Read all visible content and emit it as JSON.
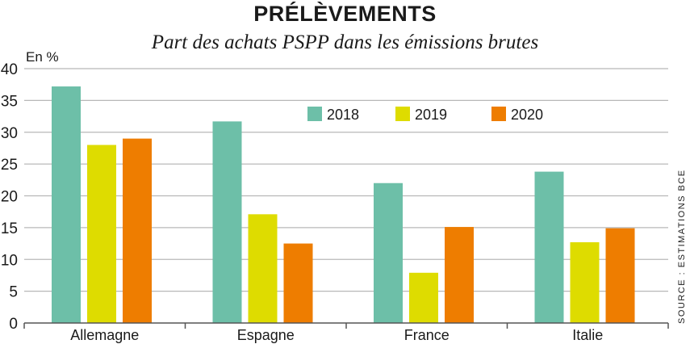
{
  "title": "PRÉLÈVEMENTS",
  "subtitle": "Part des achats PSPP dans les émissions brutes",
  "source": "SOURCE : ESTIMATIONS BCE",
  "colors": {
    "s2018": "#6dbfa8",
    "s2019": "#dedc00",
    "s2020": "#ee7d00",
    "grid": "#b8b8b8",
    "axis": "#555555"
  },
  "chart_data": {
    "type": "bar",
    "title": "PRÉLÈVEMENTS",
    "subtitle": "Part des achats PSPP dans les émissions brutes",
    "ylabel": "En %",
    "xlabel": "",
    "ylim": [
      0,
      40
    ],
    "yticks": [
      "0",
      "5",
      "10",
      "15",
      "20",
      "25",
      "30",
      "35",
      "40"
    ],
    "grid": true,
    "legend_position": "top-right",
    "categories": [
      "Allemagne",
      "Espagne",
      "France",
      "Italie"
    ],
    "series": [
      {
        "name": "2018",
        "color": "#6dbfa8",
        "values": [
          37.2,
          31.7,
          22.0,
          23.8
        ]
      },
      {
        "name": "2019",
        "color": "#dedc00",
        "values": [
          28.0,
          17.1,
          7.9,
          12.7
        ]
      },
      {
        "name": "2020",
        "color": "#ee7d00",
        "values": [
          29.0,
          12.5,
          15.1,
          14.9
        ]
      }
    ]
  }
}
